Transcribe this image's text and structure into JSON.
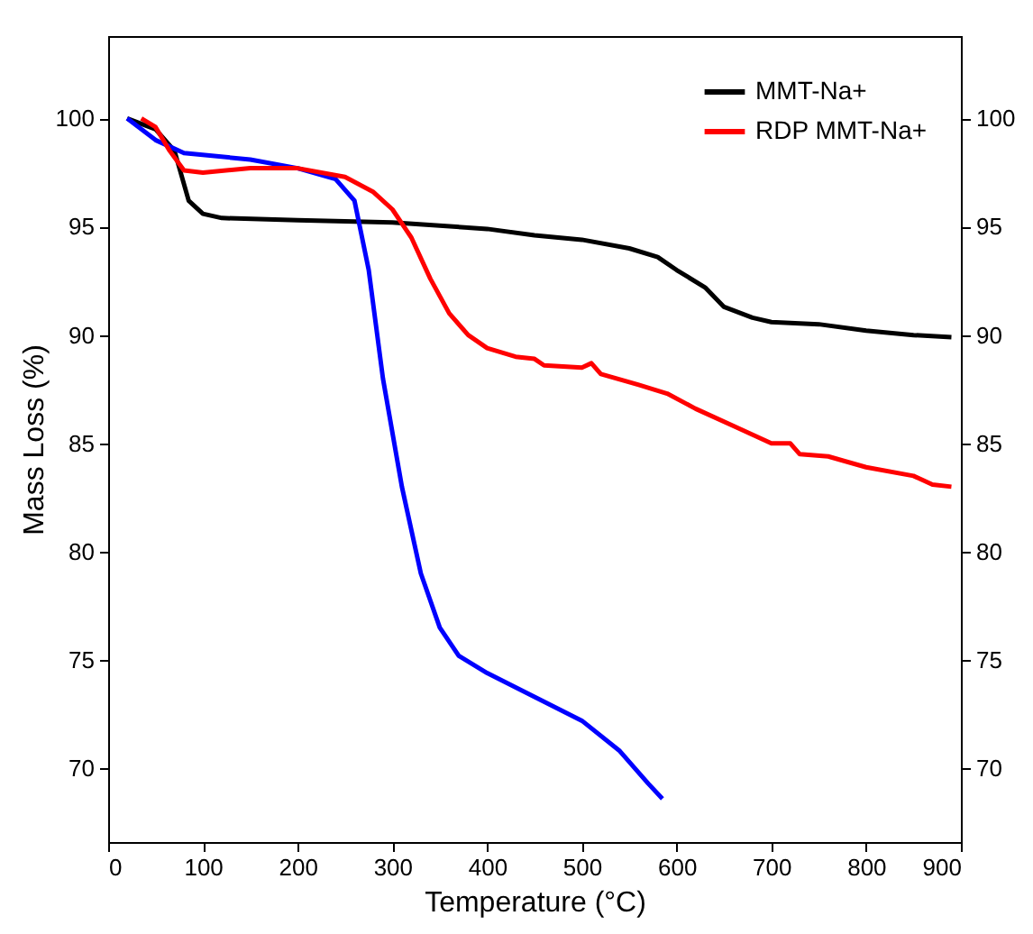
{
  "chart_data": {
    "type": "line",
    "xlabel": "Temperature (°C)",
    "ylabel": "Mass Loss (%)",
    "xlim": [
      0,
      900
    ],
    "xticks": [
      0,
      100,
      200,
      300,
      400,
      500,
      600,
      700,
      800,
      900
    ],
    "ylim": [
      66.6,
      103.8
    ],
    "yticks": [
      70,
      75,
      80,
      85,
      90,
      95,
      100
    ],
    "y2lim": [
      66.6,
      103.8
    ],
    "y2ticks": [
      70,
      75,
      80,
      85,
      90,
      95,
      100
    ],
    "grid": false,
    "legend": "top right",
    "marker": "none",
    "line_style": "solid",
    "series": [
      {
        "name": "MMT-Na+",
        "color": "#000000",
        "x": [
          20,
          50,
          70,
          85,
          100,
          120,
          200,
          300,
          400,
          450,
          500,
          550,
          580,
          600,
          630,
          650,
          680,
          700,
          750,
          800,
          850,
          890
        ],
        "values": [
          100,
          99.5,
          98.5,
          96.2,
          95.6,
          95.4,
          95.3,
          95.2,
          94.9,
          94.6,
          94.4,
          94.0,
          93.6,
          93.0,
          92.2,
          91.3,
          90.8,
          90.6,
          90.5,
          90.2,
          90.0,
          89.9
        ]
      },
      {
        "color": "#0000ff",
        "x": [
          20,
          50,
          80,
          150,
          200,
          240,
          260,
          275,
          290,
          310,
          330,
          350,
          370,
          400,
          450,
          500,
          540,
          570,
          585
        ],
        "values": [
          100,
          99,
          98.4,
          98.1,
          97.7,
          97.2,
          96.2,
          93,
          88,
          83,
          79,
          76.5,
          75.2,
          74.4,
          73.3,
          72.2,
          70.8,
          69.3,
          68.6
        ]
      },
      {
        "name": "RDP MMT-Na+",
        "color": "#ff0000",
        "x": [
          35,
          50,
          65,
          80,
          100,
          150,
          200,
          250,
          280,
          300,
          320,
          340,
          360,
          380,
          400,
          430,
          450,
          460,
          500,
          510,
          520,
          560,
          590,
          620,
          660,
          700,
          720,
          730,
          760,
          800,
          850,
          870,
          890
        ],
        "values": [
          100,
          99.6,
          98.5,
          97.6,
          97.5,
          97.7,
          97.7,
          97.3,
          96.6,
          95.8,
          94.5,
          92.6,
          91,
          90,
          89.4,
          89.0,
          88.9,
          88.6,
          88.5,
          88.7,
          88.2,
          87.7,
          87.3,
          86.6,
          85.8,
          85.0,
          85.0,
          84.5,
          84.4,
          83.9,
          83.5,
          83.1,
          83.0
        ]
      }
    ]
  }
}
